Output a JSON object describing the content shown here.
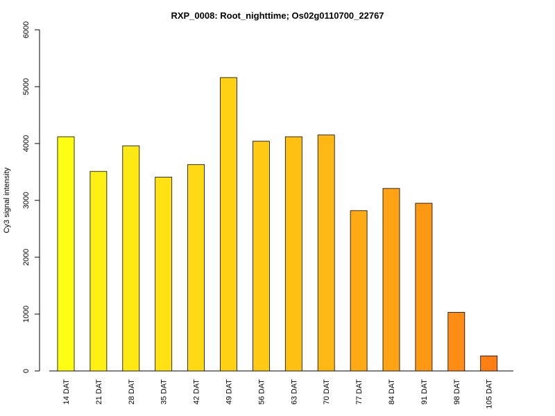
{
  "chart_data": {
    "type": "bar",
    "title": "RXP_0008: Root_nighttime; Os02g0110700_22767",
    "xlabel": "",
    "ylabel": "Cy3 signal intensity",
    "ylim": [
      0,
      6000
    ],
    "yticks": [
      0,
      1000,
      2000,
      3000,
      4000,
      5000,
      6000
    ],
    "grid": false,
    "legend": "none",
    "categories": [
      "14 DAT",
      "21 DAT",
      "28 DAT",
      "35 DAT",
      "42 DAT",
      "49 DAT",
      "56 DAT",
      "63 DAT",
      "70 DAT",
      "77 DAT",
      "84 DAT",
      "91 DAT",
      "98 DAT",
      "105 DAT"
    ],
    "values": [
      4120,
      3510,
      3960,
      3410,
      3630,
      5160,
      4040,
      4120,
      4150,
      2820,
      3210,
      2950,
      1030,
      265
    ],
    "colors": [
      "#FFFF14",
      "#FFF014",
      "#FFE914",
      "#FFE114",
      "#FFD914",
      "#FFD114",
      "#FFC914",
      "#FFC014",
      "#FFB714",
      "#FFAA14",
      "#FFA314",
      "#FF9914",
      "#FF8C14",
      "#FF7F14"
    ],
    "bar_border_color": "#000000"
  }
}
